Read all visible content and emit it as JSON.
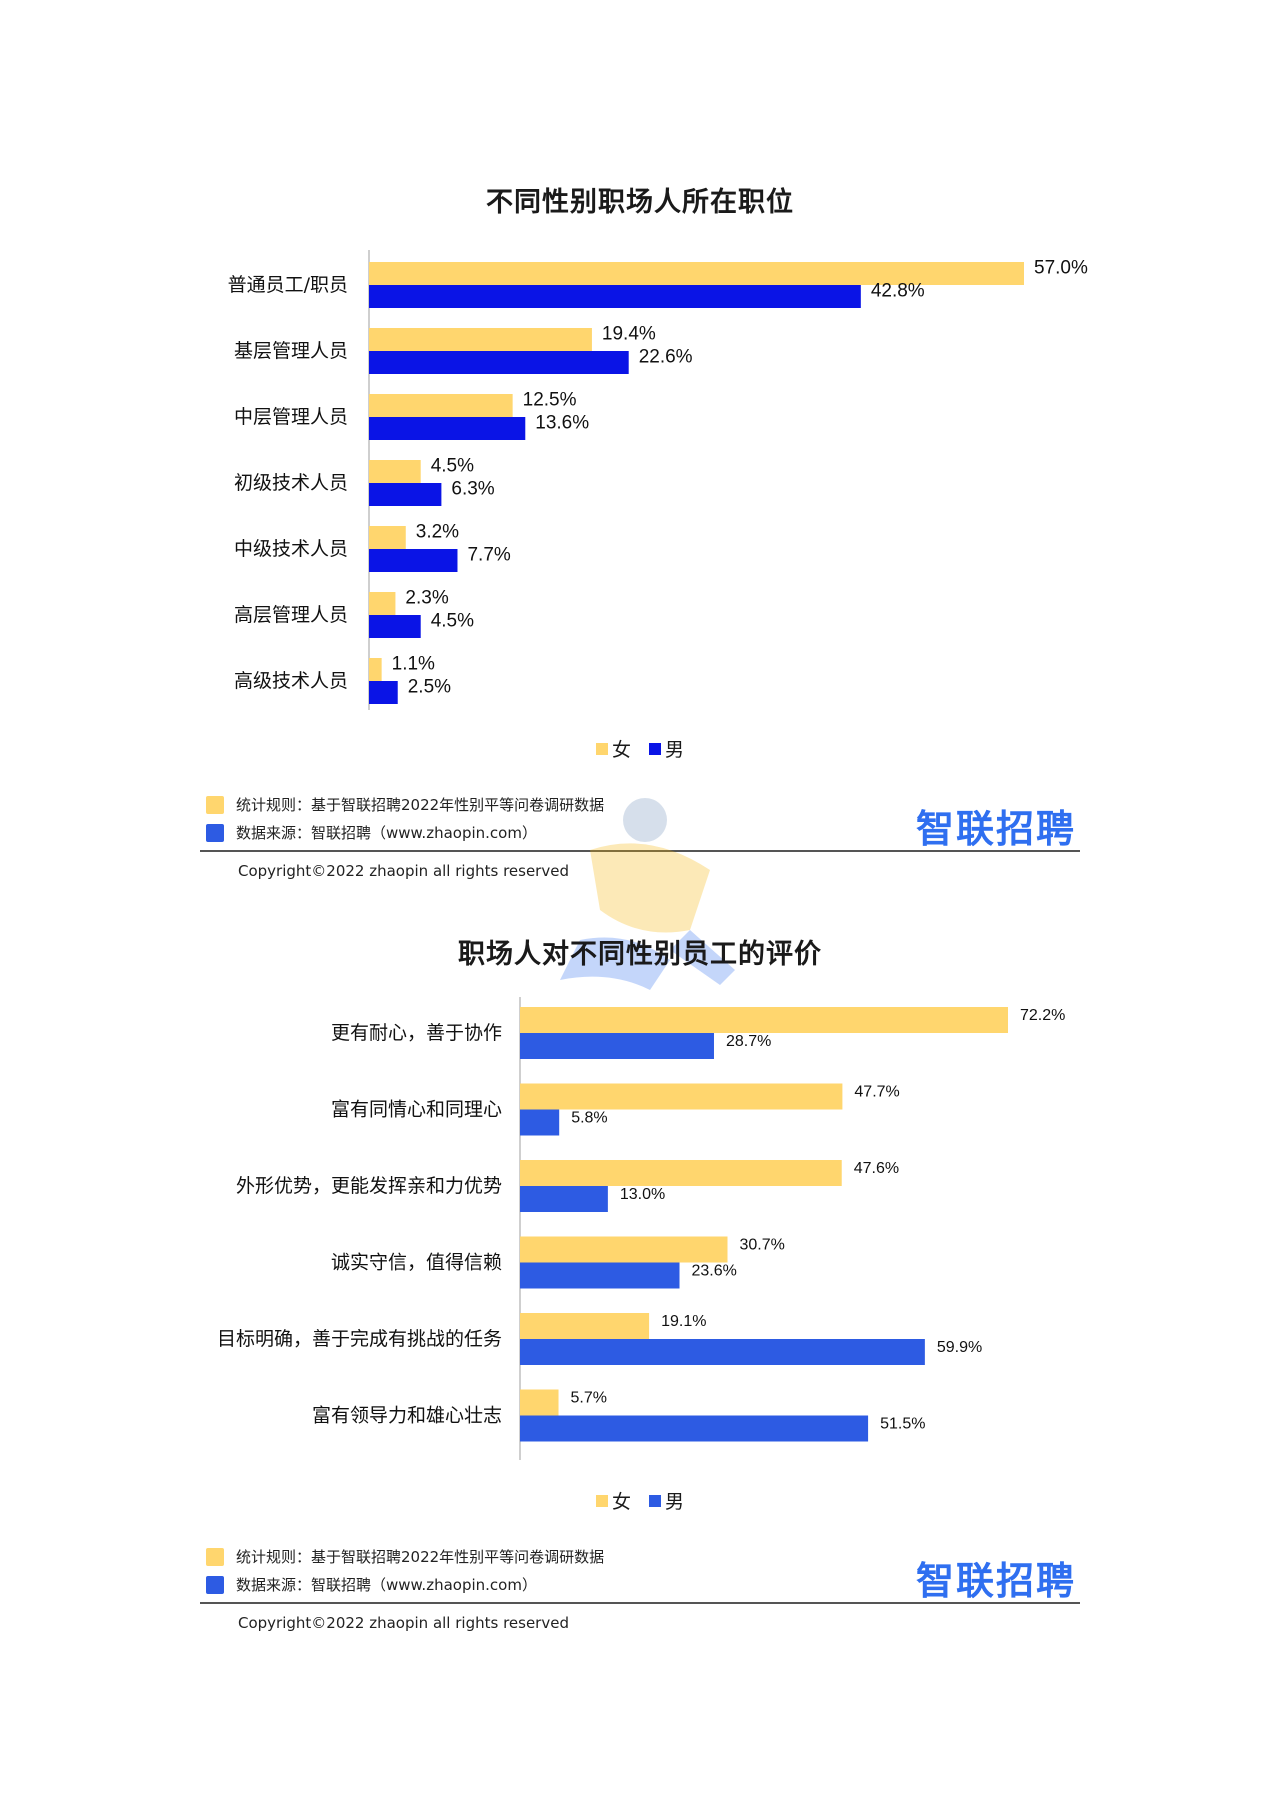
{
  "colors": {
    "female": "#FFD66E",
    "male_chart1": "#0A14E6",
    "male_chart2": "#2D5BE3",
    "brand": "#2F6FF0",
    "brand_accent": "#F5B400"
  },
  "chart_data": [
    {
      "type": "bar",
      "orientation": "horizontal",
      "title": "不同性别职场人所在职位",
      "categories": [
        "普通员工/职员",
        "基层管理人员",
        "中层管理人员",
        "初级技术人员",
        "中级技术人员",
        "高层管理人员",
        "高级技术人员"
      ],
      "series": [
        {
          "name": "女",
          "values": [
            57.0,
            19.4,
            12.5,
            4.5,
            3.2,
            2.3,
            1.1
          ]
        },
        {
          "name": "男",
          "values": [
            42.8,
            22.6,
            13.6,
            6.3,
            7.7,
            4.5,
            2.5
          ]
        }
      ],
      "value_labels": [
        [
          "57.0%",
          "19.4%",
          "12.5%",
          "4.5%",
          "3.2%",
          "2.3%",
          "1.1%"
        ],
        [
          "42.8%",
          "22.6%",
          "13.6%",
          "6.3%",
          "7.7%",
          "4.5%",
          "2.5%"
        ]
      ],
      "xlim": [
        0,
        57.0
      ],
      "grid": false,
      "legend_position": "bottom"
    },
    {
      "type": "bar",
      "orientation": "horizontal",
      "title": "职场人对不同性别员工的评价",
      "categories": [
        "更有耐心，善于协作",
        "富有同情心和同理心",
        "外形优势，更能发挥亲和力优势",
        "诚实守信，值得信赖",
        "目标明确，善于完成有挑战的任务",
        "富有领导力和雄心壮志"
      ],
      "series": [
        {
          "name": "女",
          "values": [
            72.2,
            47.7,
            47.6,
            30.7,
            19.1,
            5.7
          ]
        },
        {
          "name": "男",
          "values": [
            28.7,
            5.8,
            13.0,
            23.6,
            59.9,
            51.5
          ]
        }
      ],
      "value_labels": [
        [
          "72.2%",
          "47.7%",
          "47.6%",
          "30.7%",
          "19.1%",
          "5.7%"
        ],
        [
          "28.7%",
          "5.8%",
          "13.0%",
          "23.6%",
          "59.9%",
          "51.5%"
        ]
      ],
      "xlim": [
        0,
        72.2
      ],
      "grid": false,
      "legend_position": "bottom"
    }
  ],
  "footers": [
    {
      "note_rule": "统计规则：基于智联招聘2022年性别平等问卷调研数据",
      "note_source": "数据来源：智联招聘（www.zhaopin.com）",
      "brand": "智联招聘",
      "copyright": "Copyright©2022 zhaopin all rights reserved"
    },
    {
      "note_rule": "统计规则：基于智联招聘2022年性别平等问卷调研数据",
      "note_source": "数据来源：智联招聘（www.zhaopin.com）",
      "brand": "智联招聘",
      "copyright": "Copyright©2022 zhaopin all rights reserved"
    }
  ]
}
